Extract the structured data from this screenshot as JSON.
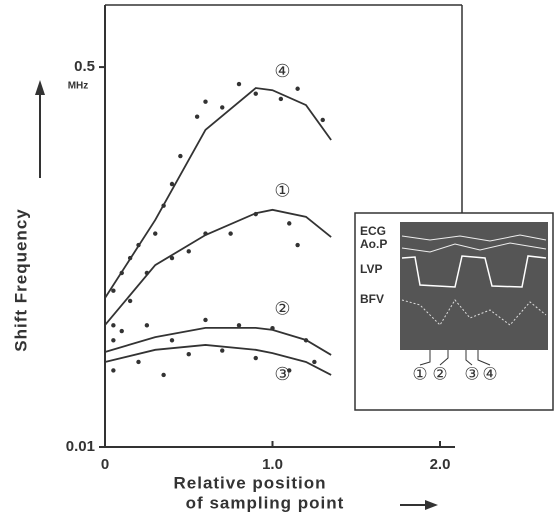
{
  "chart_data": {
    "type": "scatter",
    "ylabel": "Shift Frequency",
    "xlabel": [
      "Relative position",
      "of sampling point"
    ],
    "yunit": "MHz",
    "xlim": [
      0,
      2.0
    ],
    "ylim": [
      0.01,
      0.9
    ],
    "ylog": true,
    "xticks": [
      0,
      {
        "value": 1,
        "label": "1.0"
      },
      {
        "value": 2,
        "label": "2.0"
      }
    ],
    "yticks": [
      0.01,
      0.5
    ],
    "points": {
      "color": "#333",
      "x": [
        0.05,
        0.1,
        0.15,
        0.2,
        0.3,
        0.35,
        0.4,
        0.45,
        0.55,
        0.6,
        0.7,
        0.8,
        0.9,
        1.05,
        1.15,
        1.3,
        0.05,
        0.15,
        0.25,
        0.4,
        0.5,
        0.6,
        0.75,
        0.9,
        1.1,
        1.15,
        0.05,
        0.1,
        0.25,
        0.4,
        0.6,
        0.8,
        1.0,
        1.2,
        0.05,
        0.2,
        0.35,
        0.5,
        0.7,
        0.9,
        1.1,
        1.25
      ],
      "y": [
        0.05,
        0.06,
        0.07,
        0.08,
        0.09,
        0.12,
        0.15,
        0.2,
        0.3,
        0.35,
        0.33,
        0.42,
        0.38,
        0.36,
        0.4,
        0.29,
        0.035,
        0.045,
        0.06,
        0.07,
        0.075,
        0.09,
        0.09,
        0.11,
        0.1,
        0.08,
        0.03,
        0.033,
        0.035,
        0.03,
        0.037,
        0.035,
        0.034,
        0.03,
        0.022,
        0.024,
        0.021,
        0.026,
        0.027,
        0.025,
        0.022,
        0.024
      ]
    },
    "series": [
      {
        "name": "④",
        "color": "#333",
        "x": [
          0,
          0.3,
          0.6,
          0.9,
          1.0,
          1.2,
          1.35
        ],
        "values": [
          0.0464,
          0.1036,
          0.262,
          0.403,
          0.394,
          0.338,
          0.236
        ]
      },
      {
        "name": "①",
        "color": "#333",
        "x": [
          0,
          0.3,
          0.6,
          0.9,
          1.0,
          1.2,
          1.35
        ],
        "values": [
          0.0351,
          0.0651,
          0.0887,
          0.111,
          0.115,
          0.107,
          0.0869
        ]
      },
      {
        "name": "②",
        "color": "#333",
        "x": [
          0,
          0.3,
          0.6,
          0.9,
          1.0,
          1.2,
          1.35
        ],
        "values": [
          0.0266,
          0.031,
          0.0341,
          0.0341,
          0.0334,
          0.0301,
          0.0258
        ]
      },
      {
        "name": "③",
        "color": "#333",
        "x": [
          0,
          0.3,
          0.6,
          0.9,
          1.0,
          1.2,
          1.35
        ],
        "values": [
          0.024,
          0.0272,
          0.0286,
          0.0272,
          0.0263,
          0.024,
          0.021
        ]
      }
    ],
    "inset": {
      "labels": [
        "ECG",
        "Ao.P",
        "LVP",
        "BFV"
      ],
      "markers": [
        "①",
        "②",
        "③",
        "④"
      ]
    }
  }
}
